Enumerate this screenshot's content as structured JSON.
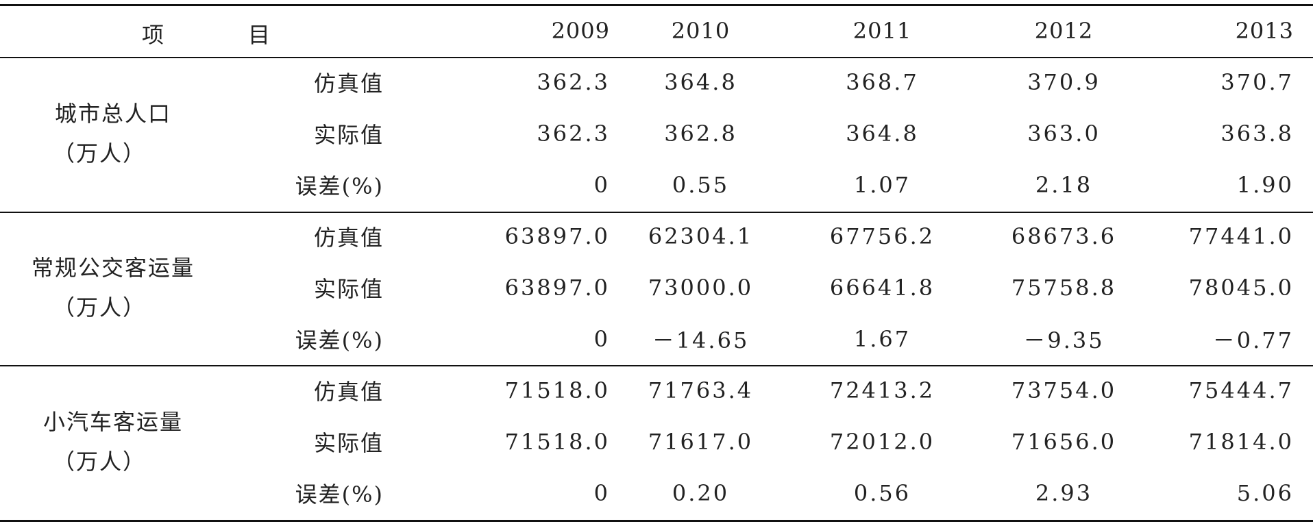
{
  "table": {
    "header": {
      "item_left": "项",
      "item_right": "目",
      "years": [
        "2009",
        "2010",
        "2011",
        "2012",
        "2013"
      ]
    },
    "groups": [
      {
        "name": "城市总人口",
        "unit": "（万人）",
        "rows": [
          {
            "label": "仿真值",
            "values": [
              "362.3",
              "364.8",
              "368.7",
              "370.9",
              "370.7"
            ]
          },
          {
            "label": "实际值",
            "values": [
              "362.3",
              "362.8",
              "364.8",
              "363.0",
              "363.8"
            ]
          },
          {
            "label": "误差(%)",
            "values": [
              "0",
              "0.55",
              "1.07",
              "2.18",
              "1.90"
            ]
          }
        ]
      },
      {
        "name": "常规公交客运量",
        "unit": "（万人）",
        "rows": [
          {
            "label": "仿真值",
            "values": [
              "63897.0",
              "62304.1",
              "67756.2",
              "68673.6",
              "77441.0"
            ]
          },
          {
            "label": "实际值",
            "values": [
              "63897.0",
              "73000.0",
              "66641.8",
              "75758.8",
              "78045.0"
            ]
          },
          {
            "label": "误差(%)",
            "values": [
              "0",
              "－14.65",
              "1.67",
              "－9.35",
              "－0.77"
            ]
          }
        ]
      },
      {
        "name": "小汽车客运量",
        "unit": "（万人）",
        "rows": [
          {
            "label": "仿真值",
            "values": [
              "71518.0",
              "71763.4",
              "72413.2",
              "73754.0",
              "75444.7"
            ]
          },
          {
            "label": "实际值",
            "values": [
              "71518.0",
              "71617.0",
              "72012.0",
              "71656.0",
              "71814.0"
            ]
          },
          {
            "label": "误差(%)",
            "values": [
              "0",
              "0.20",
              "0.56",
              "2.93",
              "5.06"
            ]
          }
        ]
      }
    ]
  }
}
